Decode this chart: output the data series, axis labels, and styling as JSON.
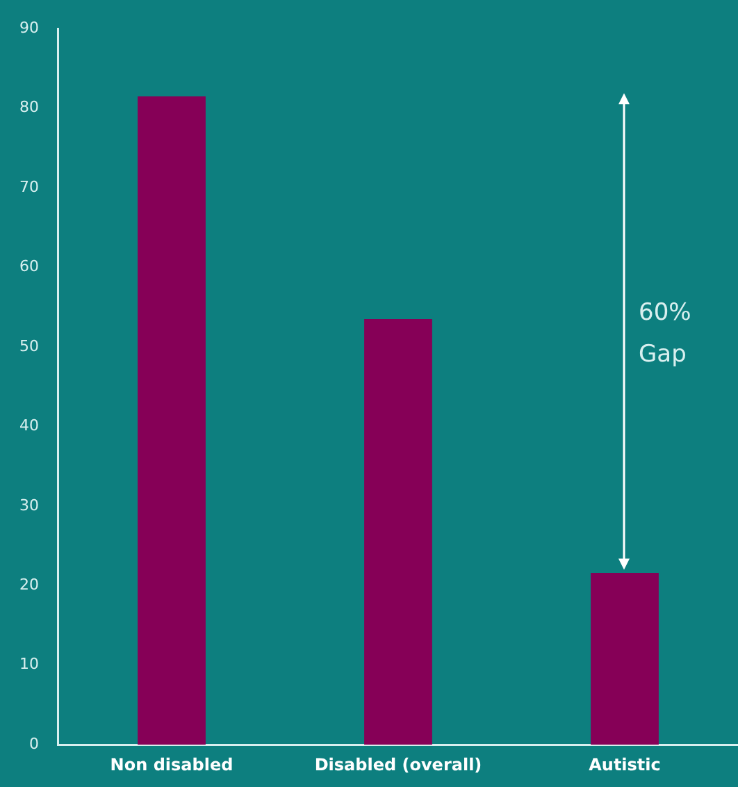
{
  "chart_data": {
    "type": "bar",
    "categories": [
      "Non disabled",
      "Disabled (overall)",
      "Autistic"
    ],
    "values": [
      81.5,
      53.5,
      21.6
    ],
    "color": "#860057",
    "ylim": [
      0,
      90
    ],
    "yticks": [
      0,
      10,
      20,
      30,
      40,
      50,
      60,
      70,
      80,
      90
    ],
    "grid": false,
    "annotations": [
      "60% Gap"
    ]
  }
}
